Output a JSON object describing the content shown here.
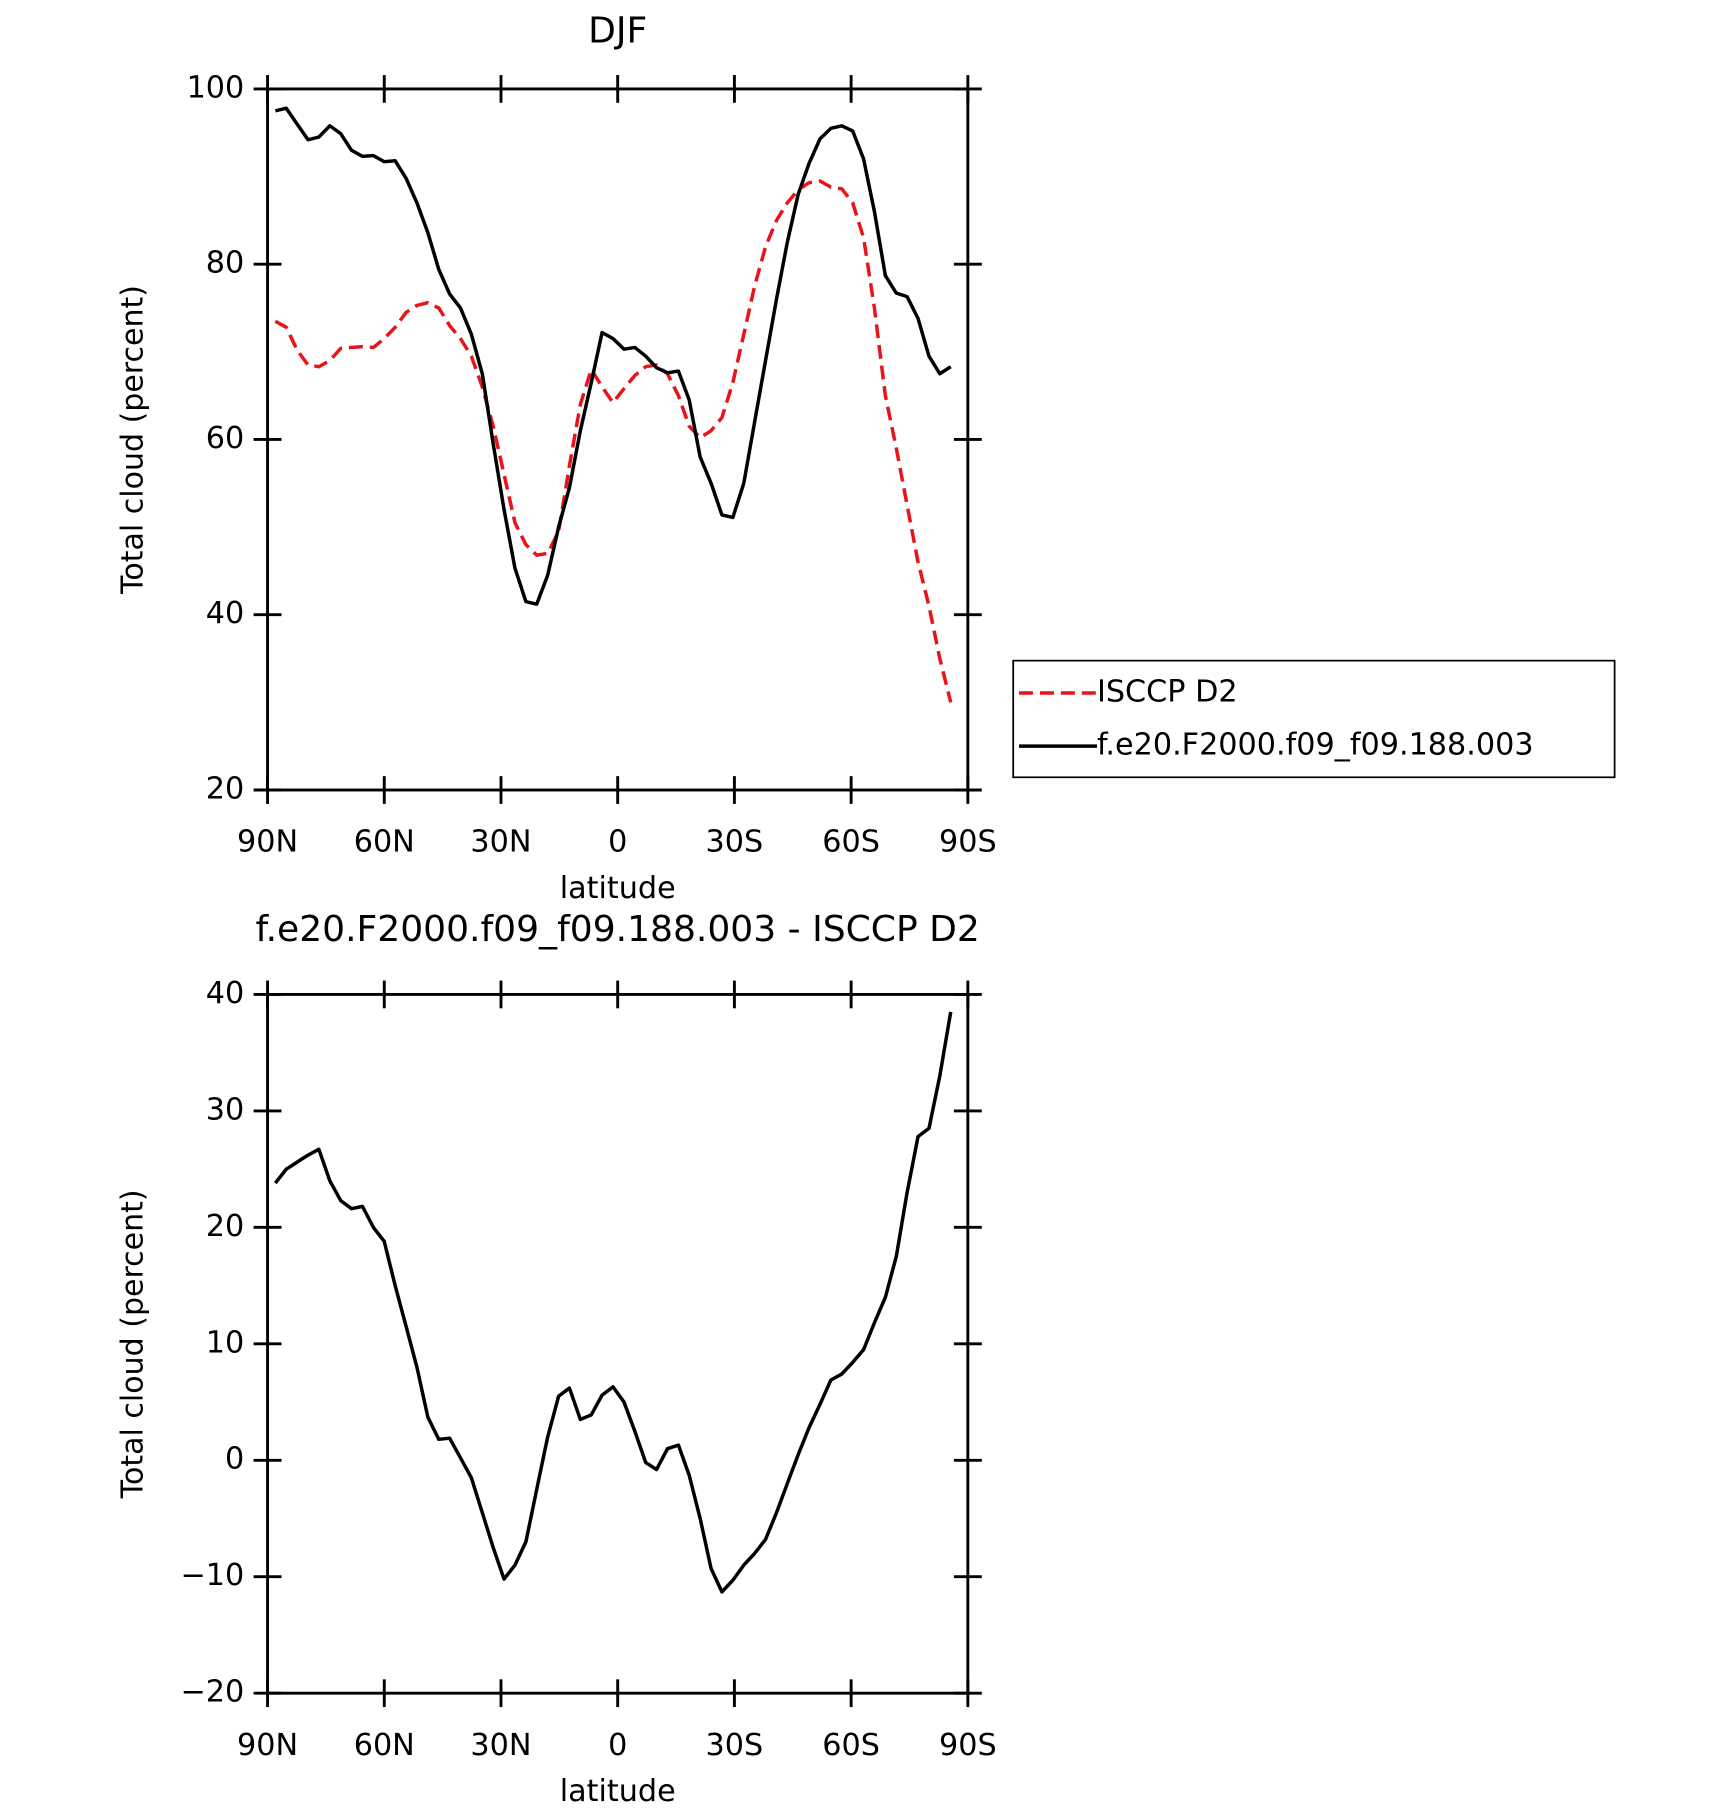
{
  "chart_data": [
    {
      "type": "line",
      "title": "DJF",
      "xlabel": "latitude",
      "ylabel": "Total cloud (percent)",
      "xlim": [
        90,
        -90
      ],
      "xticks": [
        {
          "value": 90,
          "label": "90N"
        },
        {
          "value": 60,
          "label": "60N"
        },
        {
          "value": 30,
          "label": "30N"
        },
        0,
        {
          "value": -30,
          "label": "30S"
        },
        {
          "value": -60,
          "label": "60S"
        },
        {
          "value": -90,
          "label": "90S"
        }
      ],
      "ylim": [
        20,
        100
      ],
      "yticks": [
        20,
        40,
        60,
        80,
        100
      ],
      "legend": "right",
      "x": [
        88,
        85.2,
        82.4,
        79.6,
        76.8,
        74,
        71.2,
        68.4,
        65.6,
        62.8,
        60,
        57.2,
        54.4,
        51.6,
        48.8,
        46,
        43.2,
        40.4,
        37.6,
        34.8,
        32,
        29.2,
        26.4,
        23.6,
        20.8,
        18,
        15.2,
        12.4,
        9.6,
        6.8,
        4,
        1.2,
        -1.6,
        -4.4,
        -7.2,
        -10,
        -12.8,
        -15.6,
        -18.4,
        -21.2,
        -24,
        -26.8,
        -29.6,
        -32.4,
        -35.2,
        -38,
        -40.8,
        -43.6,
        -46.4,
        -49.2,
        -52,
        -54.8,
        -57.6,
        -60.4,
        -63.2,
        -66,
        -68.8,
        -71.6,
        -74.4,
        -77.2,
        -80,
        -82.8,
        -85.6
      ],
      "series": [
        {
          "name": "ISCCP D2",
          "color": "#e8141a",
          "linestyle": "dashed",
          "values": [
            73.5,
            72.8,
            70.2,
            68.5,
            68.3,
            69,
            70.4,
            70.5,
            70.6,
            70.5,
            71.5,
            72.8,
            74.5,
            75.3,
            75.6,
            75,
            73,
            71.5,
            69.5,
            66,
            61.5,
            56,
            50.5,
            48,
            46.8,
            47,
            49.5,
            57,
            64,
            68,
            66,
            64.2,
            65.8,
            67.3,
            68.3,
            68.5,
            67.5,
            65,
            61.5,
            60.2,
            61,
            62.5,
            66.5,
            72,
            77.5,
            82,
            85,
            87,
            88.5,
            89.3,
            89.5,
            88.8,
            88.6,
            87,
            83,
            75,
            65,
            59,
            52.5,
            46,
            41,
            35,
            30
          ]
        },
        {
          "name": "f.e20.F2000.f09_f09.188.003",
          "color": "#000000",
          "linestyle": "solid",
          "values": [
            97.5,
            97.8,
            96,
            94.2,
            94.5,
            95.8,
            94.9,
            93,
            92.3,
            92.4,
            91.7,
            91.8,
            89.8,
            87,
            83.6,
            79.4,
            76.6,
            75,
            72,
            67.5,
            59.5,
            52,
            45.3,
            41.5,
            41.2,
            44.5,
            50,
            54.5,
            61,
            66.5,
            72.2,
            71.5,
            70.3,
            70.5,
            69.5,
            68.2,
            67.6,
            67.8,
            64.5,
            58,
            55,
            51.4,
            51.1,
            55,
            62,
            69,
            76,
            82.5,
            88,
            91.5,
            94.3,
            95.5,
            95.8,
            95.2,
            92,
            86,
            78.7,
            76.7,
            76.3,
            73.8,
            69.5,
            67.5,
            68.3
          ]
        }
      ]
    },
    {
      "type": "line",
      "title": "f.e20.F2000.f09_f09.188.003 - ISCCP D2",
      "xlabel": "latitude",
      "ylabel": "Total cloud (percent)",
      "xlim": [
        90,
        -90
      ],
      "xticks": [
        {
          "value": 90,
          "label": "90N"
        },
        {
          "value": 60,
          "label": "60N"
        },
        {
          "value": 30,
          "label": "30N"
        },
        0,
        {
          "value": -30,
          "label": "30S"
        },
        {
          "value": -60,
          "label": "60S"
        },
        {
          "value": -90,
          "label": "90S"
        }
      ],
      "ylim": [
        -20,
        40
      ],
      "yticks": [
        {
          "value": -20,
          "label": "−20"
        },
        {
          "value": -10,
          "label": "−10"
        },
        0,
        10,
        20,
        30,
        40
      ],
      "x": [
        88,
        85.2,
        82.4,
        79.6,
        76.8,
        74,
        71.2,
        68.4,
        65.6,
        62.8,
        60,
        57.2,
        54.4,
        51.6,
        48.8,
        46,
        43.2,
        40.4,
        37.6,
        34.8,
        32,
        29.2,
        26.4,
        23.6,
        20.8,
        18,
        15.2,
        12.4,
        9.6,
        6.8,
        4,
        1.2,
        -1.6,
        -4.4,
        -7.2,
        -10,
        -12.8,
        -15.6,
        -18.4,
        -21.2,
        -24,
        -26.8,
        -29.6,
        -32.4,
        -35.2,
        -38,
        -40.8,
        -43.6,
        -46.4,
        -49.2,
        -52,
        -54.8,
        -57.6,
        -60.4,
        -63.2,
        -66,
        -68.8,
        -71.6,
        -74.4,
        -77.2,
        -80,
        -82.8,
        -85.6
      ],
      "series": [
        {
          "color": "#000000",
          "linestyle": "solid",
          "values": [
            23.8,
            25,
            25.6,
            26.2,
            26.7,
            24,
            22.3,
            21.6,
            21.8,
            20,
            18.8,
            15,
            11.5,
            8,
            3.7,
            1.8,
            1.9,
            0.2,
            -1.5,
            -4.5,
            -7.5,
            -10.2,
            -9,
            -7,
            -2.5,
            2,
            5.5,
            6.2,
            3.5,
            3.9,
            5.6,
            6.3,
            5,
            2.5,
            -0.2,
            -0.8,
            1,
            1.3,
            -1.3,
            -5,
            -9.3,
            -11.3,
            -10.3,
            -9,
            -8,
            -6.8,
            -4.5,
            -2,
            0.5,
            2.8,
            4.8,
            6.9,
            7.4,
            8.4,
            9.5,
            11.8,
            14,
            17.5,
            23,
            27.8,
            28.5,
            33,
            38.5
          ]
        }
      ]
    }
  ]
}
